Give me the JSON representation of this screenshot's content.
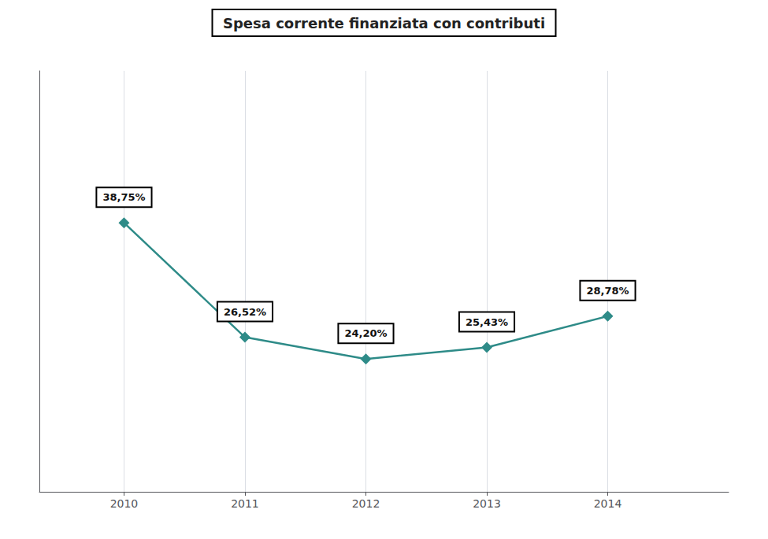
{
  "chart_data": {
    "type": "line",
    "title": "Spesa corrente finanziata con contributi",
    "x": [
      2010,
      2011,
      2012,
      2013,
      2014
    ],
    "values": [
      38.75,
      26.52,
      24.2,
      25.43,
      28.78
    ],
    "value_labels": [
      "38,75%",
      "26,52%",
      "24,20%",
      "25,43%",
      "28,78%"
    ],
    "data_labels": true,
    "color": "#2e8b88",
    "marker": "diamond",
    "xlim": [
      2009.3,
      2015.0
    ],
    "xticks": [
      2010,
      2011,
      2012,
      2013,
      2014
    ],
    "ylim": [
      10,
      55
    ],
    "grid": true,
    "tick_labels": "x"
  }
}
